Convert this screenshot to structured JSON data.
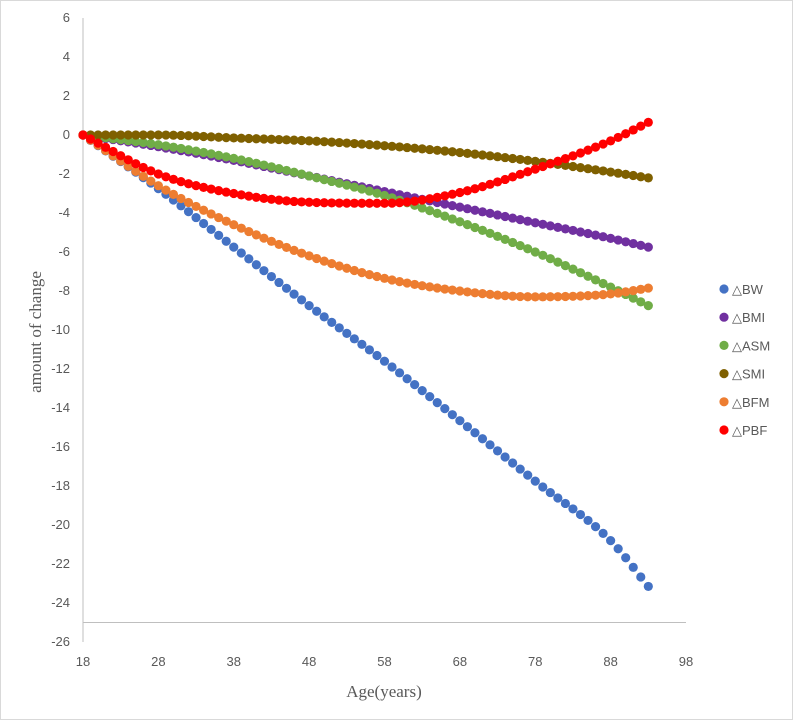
{
  "chart_data": {
    "type": "scatter",
    "title": "",
    "xlabel": "Age(years)",
    "ylabel": "amount of change",
    "xlim": [
      18,
      98
    ],
    "ylim": [
      -26,
      6
    ],
    "xticks": [
      18,
      28,
      38,
      48,
      58,
      68,
      78,
      88,
      98
    ],
    "yticks": [
      6,
      4,
      2,
      0,
      -2,
      -4,
      -6,
      -8,
      -10,
      -12,
      -14,
      -16,
      -18,
      -20,
      -22,
      -24,
      -26
    ],
    "reference_line_y": -25,
    "x_start": 18,
    "x_end": 93,
    "point_count": 76,
    "grid": false,
    "legend_position": "right",
    "series": [
      {
        "name": "△BW",
        "color": "#4472c4",
        "x": [
          18,
          28,
          38,
          48,
          58,
          68,
          78,
          88,
          93
        ],
        "y": [
          0,
          -2.75,
          -5.75,
          -8.75,
          -11.6,
          -14.65,
          -17.75,
          -20.8,
          -23.15
        ]
      },
      {
        "name": "△BMI",
        "color": "#7030a0",
        "x": [
          18,
          28,
          38,
          48,
          58,
          68,
          78,
          88,
          93
        ],
        "y": [
          0,
          -0.6,
          -1.3,
          -2.1,
          -2.9,
          -3.7,
          -4.5,
          -5.3,
          -5.75
        ]
      },
      {
        "name": "△ASM",
        "color": "#70ad47",
        "x": [
          18,
          28,
          38,
          48,
          58,
          68,
          78,
          88,
          93
        ],
        "y": [
          0,
          -0.5,
          -1.2,
          -2.1,
          -3.1,
          -4.45,
          -6.0,
          -7.8,
          -8.75
        ]
      },
      {
        "name": "△SMI",
        "color": "#7f6000",
        "x": [
          18,
          28,
          38,
          48,
          58,
          68,
          78,
          88,
          93
        ],
        "y": [
          0,
          0,
          -0.15,
          -0.3,
          -0.55,
          -0.9,
          -1.35,
          -1.9,
          -2.2
        ]
      },
      {
        "name": "△BFM",
        "color": "#ed7d31",
        "x": [
          18,
          28,
          38,
          48,
          58,
          68,
          78,
          88,
          93
        ],
        "y": [
          0,
          -2.6,
          -4.6,
          -6.2,
          -7.35,
          -8.0,
          -8.3,
          -8.15,
          -7.85
        ]
      },
      {
        "name": "△PBF",
        "color": "#ff0000",
        "x": [
          18,
          28,
          38,
          48,
          58,
          68,
          78,
          88,
          93
        ],
        "y": [
          0,
          -2.0,
          -3.0,
          -3.45,
          -3.5,
          -2.95,
          -1.75,
          -0.3,
          0.65
        ]
      }
    ]
  }
}
